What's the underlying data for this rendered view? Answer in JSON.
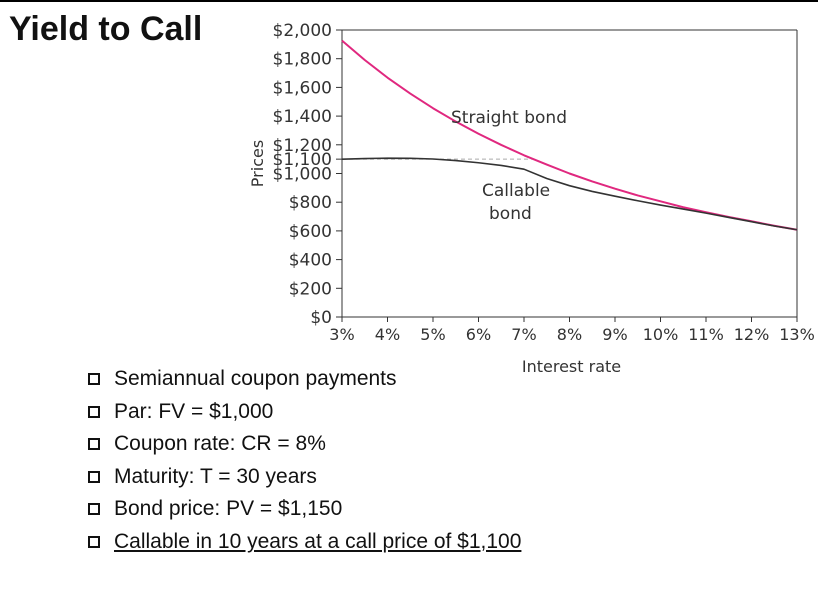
{
  "slide": {
    "title": "Yield to Call"
  },
  "bullets": [
    {
      "text": "Semiannual coupon payments"
    },
    {
      "text": "Par: FV = $1,000"
    },
    {
      "text": "Coupon rate:  CR = 8%"
    },
    {
      "text": "Maturity:  T = 30 years"
    },
    {
      "text": "Bond price: PV = $1,150"
    },
    {
      "text": "Callable in 10 years at a call price of $1,100",
      "underline": true
    }
  ],
  "colors": {
    "straight": "#e0287f",
    "callable": "#333333",
    "reference": "#aaaaaa",
    "axis": "#333333"
  },
  "chart_data": {
    "type": "line",
    "xlabel": "Interest rate",
    "ylabel": "Prices",
    "x_ticks": [
      3,
      4,
      5,
      6,
      7,
      8,
      9,
      10,
      11,
      12,
      13
    ],
    "x_tick_labels": [
      "3%",
      "4%",
      "5%",
      "6%",
      "7%",
      "8%",
      "9%",
      "10%",
      "11%",
      "12%",
      "13%"
    ],
    "y_ticks": [
      0,
      200,
      400,
      600,
      800,
      1000,
      1100,
      1200,
      1400,
      1600,
      1800,
      2000
    ],
    "y_tick_labels": [
      "$0",
      "$200",
      "$400",
      "$600",
      "$800",
      "$1,000",
      "$1,100",
      "$1,200",
      "$1,400",
      "$1,600",
      "$1,800",
      "$2,000"
    ],
    "xlim": [
      3,
      13
    ],
    "ylim": [
      0,
      2000
    ],
    "grid": false,
    "reference_line": {
      "y": 1100,
      "x_from": 3,
      "x_to": 7.2,
      "style": "dashed"
    },
    "series": [
      {
        "name": "Straight bond",
        "x": [
          3,
          3.5,
          4,
          4.5,
          5,
          5.5,
          6,
          6.5,
          7,
          7.5,
          8,
          8.5,
          9,
          9.5,
          10,
          10.5,
          11,
          11.5,
          12,
          12.5,
          13
        ],
        "y": [
          1926,
          1791,
          1668,
          1557,
          1455,
          1362,
          1277,
          1199,
          1127,
          1062,
          1000,
          945,
          894,
          847,
          806,
          765,
          730,
          697,
          667,
          636,
          608
        ]
      },
      {
        "name": "Callable bond",
        "x": [
          3,
          3.5,
          4,
          4.5,
          5,
          5.5,
          6,
          6.5,
          7,
          7.5,
          8,
          8.5,
          9,
          9.5,
          10,
          10.5,
          11,
          11.5,
          12,
          12.5,
          13
        ],
        "y": [
          1100,
          1104,
          1107,
          1106,
          1101,
          1090,
          1075,
          1056,
          1030,
          965,
          915,
          875,
          842,
          810,
          780,
          752,
          724,
          694,
          664,
          634,
          608
        ]
      }
    ]
  }
}
